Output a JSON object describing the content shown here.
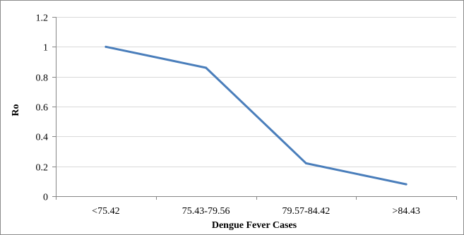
{
  "chart_data": {
    "type": "line",
    "title": "",
    "xlabel": "Dengue Fever Cases",
    "ylabel": "Ro",
    "categories": [
      "<75.42",
      "75.43-79.56",
      "79.57-84.42",
      ">84.43"
    ],
    "series": [
      {
        "values": [
          1.0,
          0.86,
          0.22,
          0.08
        ],
        "color": "#4a7ebb"
      }
    ],
    "ylim": [
      0,
      1.2
    ],
    "yticks": [
      0,
      0.2,
      0.4,
      0.6,
      0.8,
      1,
      1.2
    ],
    "ytick_labels": [
      "0",
      "0.2",
      "0.4",
      "0.6",
      "0.8",
      "1",
      "1.2"
    ],
    "grid": true,
    "grid_color": "#d9d9d9",
    "axis_color": "#868686",
    "legend": "none"
  }
}
